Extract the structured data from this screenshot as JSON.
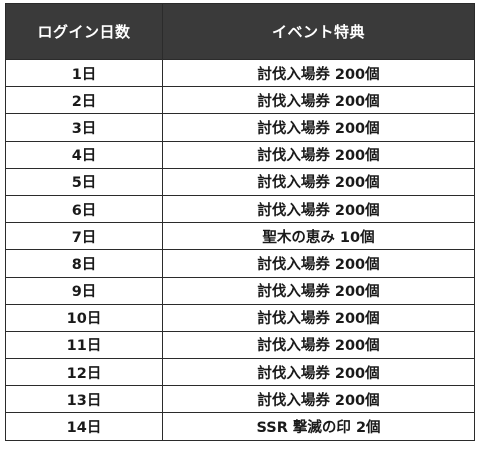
{
  "table": {
    "headers": [
      "ログイン日数",
      "イベント特典"
    ],
    "rows": [
      {
        "day": "1日",
        "reward": "討伐入場券 200個"
      },
      {
        "day": "2日",
        "reward": "討伐入場券 200個"
      },
      {
        "day": "3日",
        "reward": "討伐入場券 200個"
      },
      {
        "day": "4日",
        "reward": "討伐入場券 200個"
      },
      {
        "day": "5日",
        "reward": "討伐入場券 200個"
      },
      {
        "day": "6日",
        "reward": "討伐入場券 200個"
      },
      {
        "day": "7日",
        "reward": "聖木の恵み 10個"
      },
      {
        "day": "8日",
        "reward": "討伐入場券 200個"
      },
      {
        "day": "9日",
        "reward": "討伐入場券 200個"
      },
      {
        "day": "10日",
        "reward": "討伐入場券 200個"
      },
      {
        "day": "11日",
        "reward": "討伐入場券 200個"
      },
      {
        "day": "12日",
        "reward": "討伐入場券 200個"
      },
      {
        "day": "13日",
        "reward": "討伐入場券 200個"
      },
      {
        "day": "14日",
        "reward": "SSR 撃滅の印 2個"
      }
    ]
  }
}
